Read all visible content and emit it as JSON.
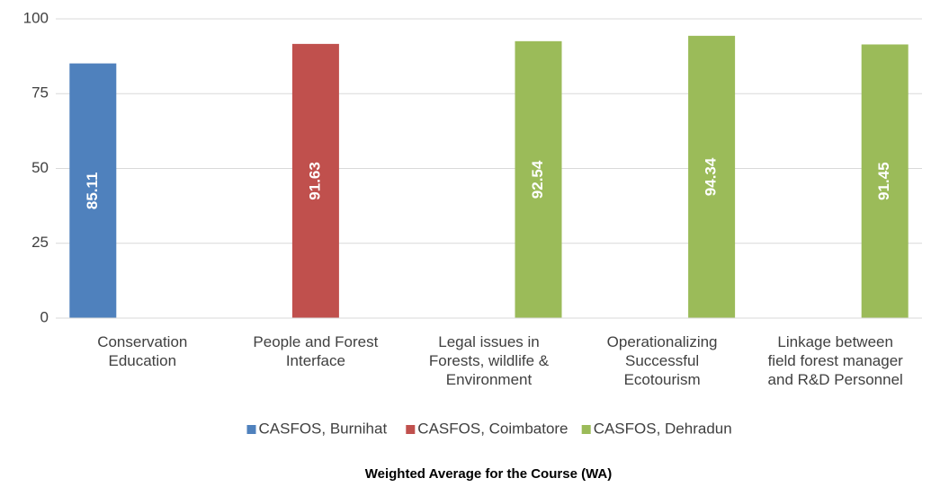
{
  "chart_data": {
    "type": "bar",
    "categories": [
      "Conservation Education",
      "People and Forest Interface",
      "Legal issues in Forests, wildlife & Environment",
      "Operationalizing Successful Ecotourism",
      "Linkage between field forest manager and R&D Personnel"
    ],
    "series": [
      {
        "name": "CASFOS, Burnihat",
        "color": "#4f81bd",
        "values": [
          85.11,
          null,
          null,
          null,
          null
        ]
      },
      {
        "name": "CASFOS, Coimbatore",
        "color": "#c0504d",
        "values": [
          null,
          91.63,
          null,
          null,
          null
        ]
      },
      {
        "name": "CASFOS, Dehradun",
        "color": "#9bbb59",
        "values": [
          null,
          null,
          92.54,
          94.34,
          91.45
        ]
      }
    ],
    "ylim": [
      0,
      100
    ],
    "yticks": [
      0,
      25,
      50,
      75,
      100
    ],
    "grid": true,
    "x_label": "Weighted Average for the Course (WA)",
    "legend": "bottom"
  }
}
